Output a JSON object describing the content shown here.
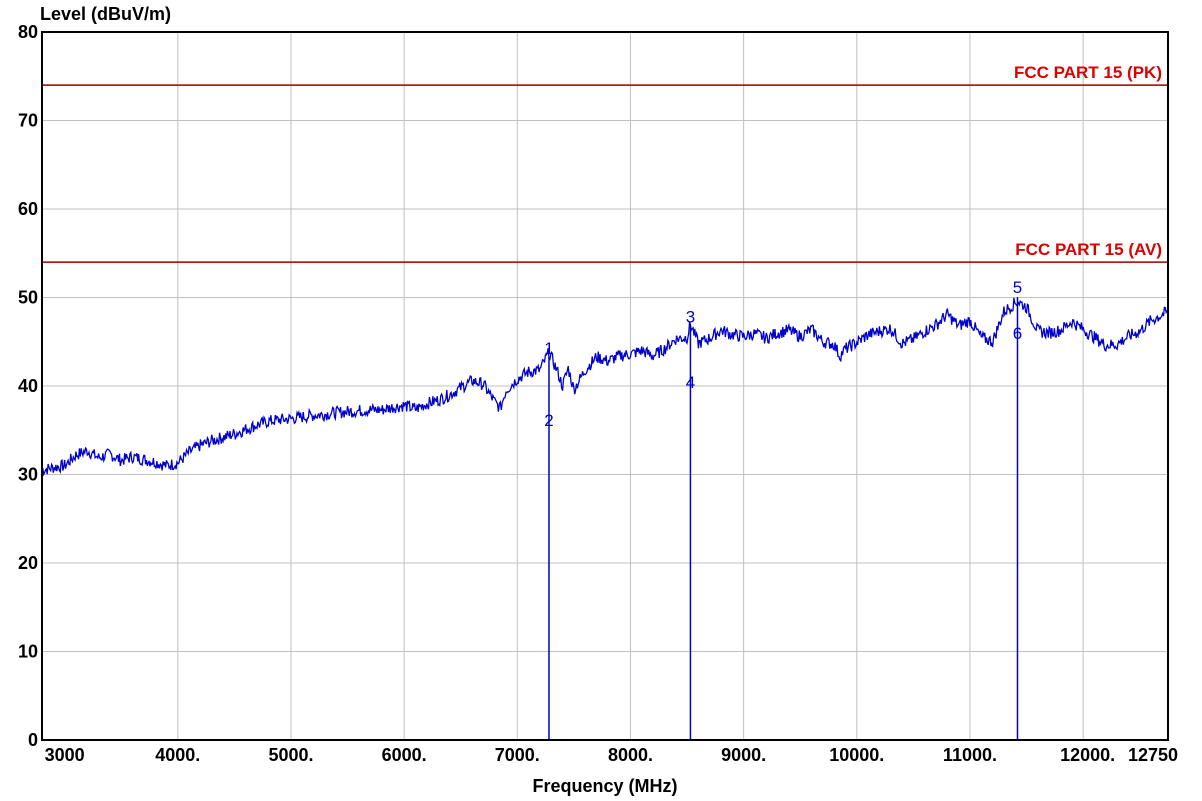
{
  "chart_data": {
    "type": "line",
    "ylabel": "Level (dBuV/m)",
    "xlabel": "Frequency (MHz)",
    "xlim": [
      2800,
      12750
    ],
    "ylim": [
      0,
      80
    ],
    "x_ticks": [
      {
        "value": 3000,
        "label": "3000"
      },
      {
        "value": 4000,
        "label": "4000."
      },
      {
        "value": 5000,
        "label": "5000."
      },
      {
        "value": 6000,
        "label": "6000."
      },
      {
        "value": 7000,
        "label": "7000."
      },
      {
        "value": 8000,
        "label": "8000."
      },
      {
        "value": 9000,
        "label": "9000."
      },
      {
        "value": 10000,
        "label": "10000."
      },
      {
        "value": 11000,
        "label": "11000."
      },
      {
        "value": 12000,
        "label": "12000."
      },
      {
        "value": 12750,
        "label": "12750"
      }
    ],
    "y_ticks": [
      {
        "value": 0,
        "label": "0"
      },
      {
        "value": 10,
        "label": "10"
      },
      {
        "value": 20,
        "label": "20"
      },
      {
        "value": 30,
        "label": "30"
      },
      {
        "value": 40,
        "label": "40"
      },
      {
        "value": 50,
        "label": "50"
      },
      {
        "value": 60,
        "label": "60"
      },
      {
        "value": 70,
        "label": "70"
      },
      {
        "value": 80,
        "label": "80"
      }
    ],
    "grid": true,
    "limit_lines": [
      {
        "label": "FCC PART 15 (PK)",
        "value": 74,
        "color": "#990000",
        "label_color": "#dd0000"
      },
      {
        "label": "FCC PART 15 (AV)",
        "value": 54,
        "color": "#990000",
        "label_color": "#dd0000"
      }
    ],
    "series": [
      {
        "color": "#0000cc",
        "x": [
          2800,
          2900,
          3000,
          3100,
          3200,
          3300,
          3400,
          3500,
          3600,
          3700,
          3800,
          3900,
          4000,
          4100,
          4200,
          4300,
          4400,
          4500,
          4600,
          4700,
          4800,
          4900,
          5000,
          5100,
          5200,
          5300,
          5400,
          5500,
          5600,
          5700,
          5800,
          5900,
          6000,
          6100,
          6200,
          6300,
          6400,
          6500,
          6600,
          6700,
          6800,
          6850,
          6900,
          7000,
          7100,
          7200,
          7280,
          7350,
          7400,
          7450,
          7500,
          7600,
          7700,
          7800,
          7900,
          8000,
          8100,
          8200,
          8300,
          8400,
          8500,
          8530,
          8600,
          8700,
          8800,
          8900,
          9000,
          9100,
          9200,
          9300,
          9400,
          9500,
          9600,
          9700,
          9800,
          9850,
          9900,
          10000,
          10100,
          10200,
          10300,
          10400,
          10500,
          10600,
          10700,
          10800,
          10900,
          11000,
          11100,
          11200,
          11300,
          11420,
          11500,
          11600,
          11700,
          11800,
          11900,
          12000,
          12100,
          12200,
          12300,
          12400,
          12500,
          12600,
          12750
        ],
        "y": [
          30.5,
          30.8,
          31.0,
          32.2,
          32.7,
          31.9,
          32.3,
          31.6,
          32.0,
          31.7,
          31.4,
          31.0,
          31.3,
          32.5,
          33.3,
          33.8,
          34.2,
          34.6,
          35.1,
          35.6,
          36.0,
          36.2,
          36.3,
          36.5,
          36.7,
          36.8,
          37.0,
          37.1,
          37.2,
          37.3,
          37.3,
          37.6,
          37.8,
          37.4,
          38.0,
          38.4,
          39.0,
          39.8,
          40.6,
          40.2,
          38.2,
          37.5,
          39.5,
          40.8,
          41.6,
          41.8,
          43.8,
          41.8,
          40.0,
          42.0,
          39.6,
          41.8,
          43.3,
          42.8,
          43.4,
          43.6,
          44.0,
          43.4,
          44.2,
          45.3,
          45.5,
          47.0,
          44.8,
          45.4,
          46.3,
          45.8,
          45.6,
          45.9,
          45.4,
          46.0,
          46.3,
          45.6,
          46.4,
          45.0,
          44.7,
          43.4,
          44.2,
          44.9,
          45.8,
          46.2,
          46.5,
          44.8,
          45.3,
          46.2,
          46.9,
          48.1,
          46.8,
          47.4,
          45.5,
          45.0,
          48.4,
          49.6,
          48.9,
          46.2,
          46.0,
          46.3,
          47.3,
          46.4,
          45.5,
          44.6,
          44.7,
          45.6,
          46.2,
          47.4,
          48.4
        ]
      }
    ],
    "markers": [
      {
        "label": "1",
        "x": 7280,
        "y": 43.6
      },
      {
        "label": "2",
        "x": 7280,
        "y": 35.5
      },
      {
        "label": "3",
        "x": 8530,
        "y": 47.2
      },
      {
        "label": "4",
        "x": 8530,
        "y": 39.8
      },
      {
        "label": "5",
        "x": 11420,
        "y": 50.5
      },
      {
        "label": "6",
        "x": 11420,
        "y": 45.3
      }
    ],
    "marker_lines": [
      7280,
      8530,
      11420
    ],
    "marker_color": "#0000cc"
  }
}
